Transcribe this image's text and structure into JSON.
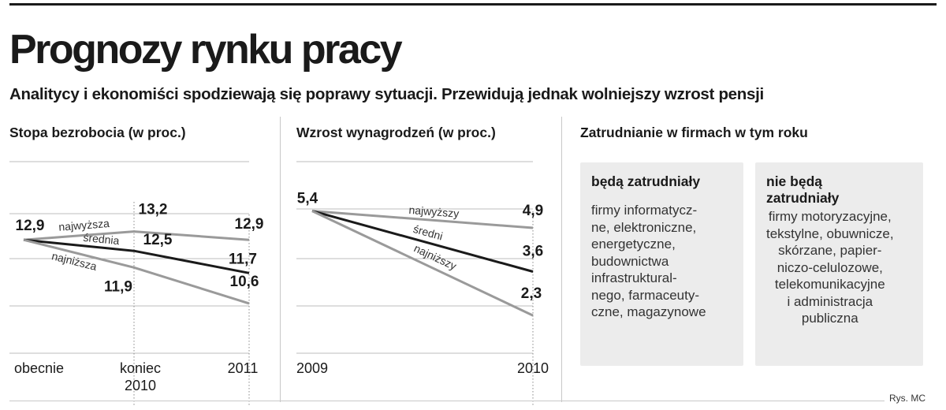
{
  "header": {
    "title": "Prognozy rynku pracy",
    "subtitle": "Analitycy i ekonomiści spodziewają się poprawy sytuacji. Przewidują jednak wolniejszy wzrost pensji"
  },
  "colors": {
    "dark_line": "#1a1a1a",
    "gray_line": "#9a9a9a",
    "box_fill": "#ececec"
  },
  "credit": "Rys. MC",
  "chart_data": [
    {
      "type": "line",
      "title": "Stopa bezrobocia (w proc.)",
      "categories": [
        "obecnie",
        "koniec 2010",
        "2011"
      ],
      "category_labels": [
        [
          "obecnie"
        ],
        [
          "koniec",
          "2010"
        ],
        [
          "2011"
        ]
      ],
      "ylim": [
        9.8,
        14.3
      ],
      "grid": true,
      "series": [
        {
          "name": "najwyższa",
          "values": [
            12.9,
            13.2,
            12.9
          ],
          "value_labels": [
            "12,9",
            "13,2",
            "12,9"
          ],
          "color": "#9a9a9a"
        },
        {
          "name": "średnia",
          "values": [
            12.9,
            12.5,
            11.7
          ],
          "value_labels": [
            "",
            "12,5",
            "11,7"
          ],
          "color": "#1a1a1a"
        },
        {
          "name": "najniższa",
          "values": [
            12.9,
            11.9,
            10.6
          ],
          "value_labels": [
            "",
            "11,9",
            "10,6"
          ],
          "color": "#9a9a9a"
        }
      ]
    },
    {
      "type": "line",
      "title": "Wzrost wynagrodzeń (w proc.)",
      "categories": [
        "2009",
        "2010"
      ],
      "category_labels": [
        [
          "2009"
        ],
        [
          "2010"
        ]
      ],
      "ylim": [
        1.6,
        6.0
      ],
      "grid": true,
      "series": [
        {
          "name": "najwyższy",
          "values": [
            5.4,
            4.9
          ],
          "value_labels": [
            "5,4",
            "4,9"
          ],
          "color": "#9a9a9a"
        },
        {
          "name": "średni",
          "values": [
            5.4,
            3.6
          ],
          "value_labels": [
            "",
            "3,6"
          ],
          "color": "#1a1a1a"
        },
        {
          "name": "najniższy",
          "values": [
            5.4,
            2.3
          ],
          "value_labels": [
            "",
            "2,3"
          ],
          "color": "#9a9a9a"
        }
      ]
    }
  ],
  "employment": {
    "heading": "Zatrudnianie w firmach w tym roku",
    "will_hire": {
      "title": "będą zatrudniały",
      "lines": [
        "firmy informatycz-",
        "ne, elektroniczne,",
        "energetyczne,",
        "budownictwa",
        "infrastruktural-",
        "nego, farmaceuty-",
        "czne, magazynowe"
      ]
    },
    "will_not_hire": {
      "title_lines": [
        "nie będą",
        "zatrudniały"
      ],
      "lines": [
        "firmy motoryzacyjne,",
        "tekstylne, obuwnicze,",
        "skórzane, papier-",
        "niczo-celulozowe,",
        "telekomunikacyjne",
        "i administracja",
        "publiczna"
      ]
    }
  }
}
